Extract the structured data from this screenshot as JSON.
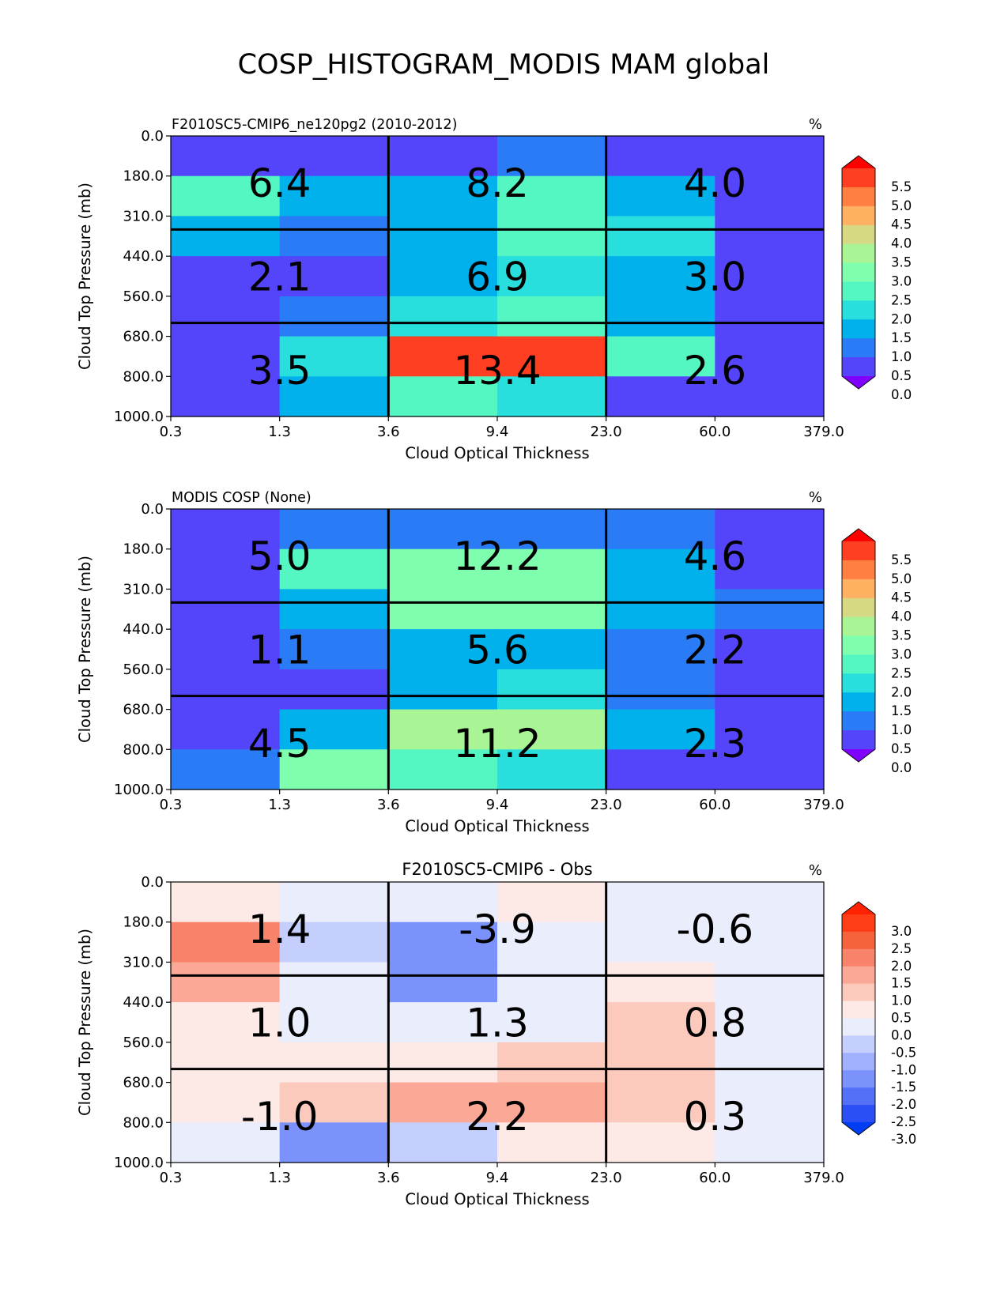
{
  "figure": {
    "title": "COSP_HISTOGRAM_MODIS MAM global"
  },
  "chart_data": [
    {
      "type": "heatmap",
      "left_title": "F2010SC5-CMIP6_ne120pg2 (2010-2012)",
      "center_title": "",
      "unit": "%",
      "xlabel": "Cloud Optical Thickness",
      "ylabel": "Cloud Top Pressure (mb)",
      "x_ticks": [
        "0.3",
        "1.3",
        "3.6",
        "9.4",
        "23.0",
        "60.0",
        "379.0"
      ],
      "y_ticks": [
        "0.0",
        "180.0",
        "310.0",
        "440.0",
        "560.0",
        "680.0",
        "800.0",
        "1000.0"
      ],
      "values": [
        [
          0.2,
          0.2,
          0.2,
          0.8,
          0.2,
          0.2
        ],
        [
          2.3,
          1.3,
          1.3,
          2.3,
          1.3,
          0.2
        ],
        [
          1.3,
          0.8,
          1.3,
          2.3,
          1.8,
          0.2
        ],
        [
          0.2,
          0.2,
          1.3,
          1.8,
          1.3,
          0.2
        ],
        [
          0.2,
          0.8,
          1.8,
          2.3,
          1.3,
          0.2
        ],
        [
          0.2,
          1.8,
          5.3,
          5.3,
          2.3,
          0.2
        ],
        [
          0.2,
          1.3,
          2.3,
          1.8,
          0.2,
          0.2
        ]
      ],
      "annotations": [
        [
          "6.4",
          "8.2",
          "4.0"
        ],
        [
          "2.1",
          "6.9",
          "3.0"
        ],
        [
          "3.5",
          "13.4",
          "2.6"
        ]
      ],
      "colorbar": {
        "levels": [
          "5.5",
          "5.0",
          "4.5",
          "4.0",
          "3.5",
          "3.0",
          "2.5",
          "2.0",
          "1.5",
          "1.0",
          "0.5",
          "0.0"
        ],
        "colors": [
          "#ff0000",
          "#ff3f22",
          "#ff7f42",
          "#ffb060",
          "#d6d884",
          "#a9f596",
          "#7fffae",
          "#54f7c2",
          "#29dfdd",
          "#00b1ec",
          "#2a7bf6",
          "#5545fa",
          "#7f00ff"
        ],
        "min": 0.0,
        "max": 5.5
      }
    },
    {
      "type": "heatmap",
      "left_title": "MODIS COSP (None)",
      "center_title": "",
      "unit": "%",
      "xlabel": "Cloud Optical Thickness",
      "ylabel": "Cloud Top Pressure (mb)",
      "x_ticks": [
        "0.3",
        "1.3",
        "3.6",
        "9.4",
        "23.0",
        "60.0",
        "379.0"
      ],
      "y_ticks": [
        "0.0",
        "180.0",
        "310.0",
        "440.0",
        "560.0",
        "680.0",
        "800.0",
        "1000.0"
      ],
      "values": [
        [
          0.2,
          0.8,
          0.8,
          0.8,
          0.8,
          0.2
        ],
        [
          0.2,
          2.3,
          2.8,
          2.8,
          1.3,
          0.2
        ],
        [
          0.2,
          1.3,
          2.8,
          2.8,
          1.3,
          0.8
        ],
        [
          0.2,
          0.8,
          1.3,
          1.3,
          0.8,
          0.2
        ],
        [
          0.2,
          0.2,
          1.3,
          1.8,
          0.8,
          0.2
        ],
        [
          0.2,
          1.3,
          3.3,
          3.3,
          1.3,
          0.2
        ],
        [
          0.8,
          2.8,
          2.3,
          1.8,
          0.2,
          0.2
        ]
      ],
      "annotations": [
        [
          "5.0",
          "12.2",
          "4.6"
        ],
        [
          "1.1",
          "5.6",
          "2.2"
        ],
        [
          "4.5",
          "11.2",
          "2.3"
        ]
      ],
      "colorbar": {
        "levels": [
          "5.5",
          "5.0",
          "4.5",
          "4.0",
          "3.5",
          "3.0",
          "2.5",
          "2.0",
          "1.5",
          "1.0",
          "0.5",
          "0.0"
        ],
        "colors": [
          "#ff0000",
          "#ff3f22",
          "#ff7f42",
          "#ffb060",
          "#d6d884",
          "#a9f596",
          "#7fffae",
          "#54f7c2",
          "#29dfdd",
          "#00b1ec",
          "#2a7bf6",
          "#5545fa",
          "#7f00ff"
        ],
        "min": 0.0,
        "max": 5.5
      }
    },
    {
      "type": "heatmap",
      "left_title": "",
      "center_title": "F2010SC5-CMIP6 - Obs",
      "unit": "%",
      "xlabel": "Cloud Optical Thickness",
      "ylabel": "Cloud Top Pressure (mb)",
      "x_ticks": [
        "0.3",
        "1.3",
        "3.6",
        "9.4",
        "23.0",
        "60.0",
        "379.0"
      ],
      "y_ticks": [
        "0.0",
        "180.0",
        "310.0",
        "440.0",
        "560.0",
        "680.0",
        "800.0",
        "1000.0"
      ],
      "values": [
        [
          0.25,
          -0.25,
          -0.25,
          0.25,
          -0.25,
          -0.25
        ],
        [
          1.75,
          -0.75,
          -1.75,
          -0.25,
          -0.25,
          -0.25
        ],
        [
          1.25,
          -0.25,
          -1.75,
          -0.25,
          0.25,
          -0.25
        ],
        [
          0.25,
          -0.25,
          -0.25,
          -0.25,
          0.75,
          -0.25
        ],
        [
          0.25,
          0.25,
          0.25,
          0.75,
          0.75,
          -0.25
        ],
        [
          0.25,
          0.75,
          1.25,
          1.25,
          0.75,
          -0.25
        ],
        [
          -0.25,
          -1.75,
          -0.75,
          0.25,
          0.25,
          -0.25
        ]
      ],
      "annotations": [
        [
          "1.4",
          "-3.9",
          "-0.6"
        ],
        [
          "1.0",
          "1.3",
          "0.8"
        ],
        [
          "-1.0",
          "2.2",
          "0.3"
        ]
      ],
      "colorbar": {
        "levels": [
          "3.0",
          "2.5",
          "2.0",
          "1.5",
          "1.0",
          "0.5",
          "0.0",
          "-0.5",
          "-1.0",
          "-1.5",
          "-2.0",
          "-2.5",
          "-3.0"
        ],
        "colors": [
          "#ff2200",
          "#ff3d17",
          "#f5633d",
          "#f7836a",
          "#fba896",
          "#fcc9bd",
          "#fdeae6",
          "#eaedfc",
          "#c5cffd",
          "#a1b0fd",
          "#7b91fb",
          "#5470f7",
          "#2b4ff5",
          "#003ef5"
        ],
        "min": -3.0,
        "max": 3.0
      }
    }
  ]
}
